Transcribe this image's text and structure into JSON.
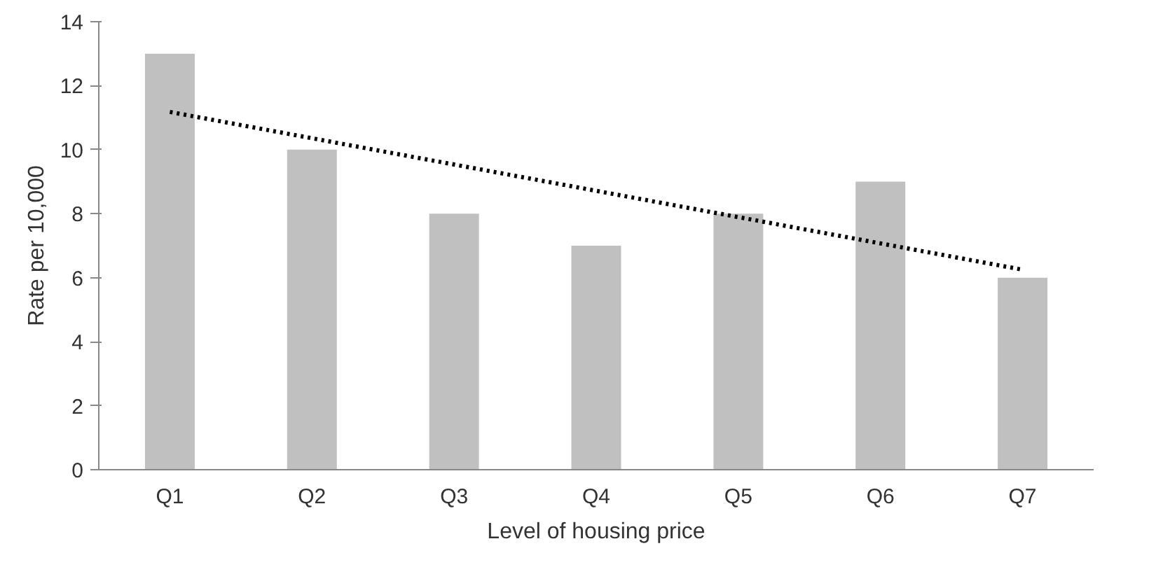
{
  "chart_data": {
    "type": "bar",
    "xlabel": "Level of housing price",
    "ylabel": "Rate per 10,000",
    "categories": [
      "Q1",
      "Q2",
      "Q3",
      "Q4",
      "Q5",
      "Q6",
      "Q7"
    ],
    "ylim": [
      0,
      14
    ],
    "yticks": [
      0,
      2,
      4,
      6,
      8,
      10,
      12,
      14
    ],
    "grid": false,
    "series": [
      {
        "color": "#c0c0c0",
        "values": [
          13,
          10,
          8,
          7,
          8,
          9,
          6
        ]
      },
      {
        "type": "line",
        "color": "#000000",
        "line_style": "dotted",
        "x": [
          "Q1",
          "Q7"
        ],
        "values": [
          11.18,
          6.25
        ]
      }
    ]
  }
}
